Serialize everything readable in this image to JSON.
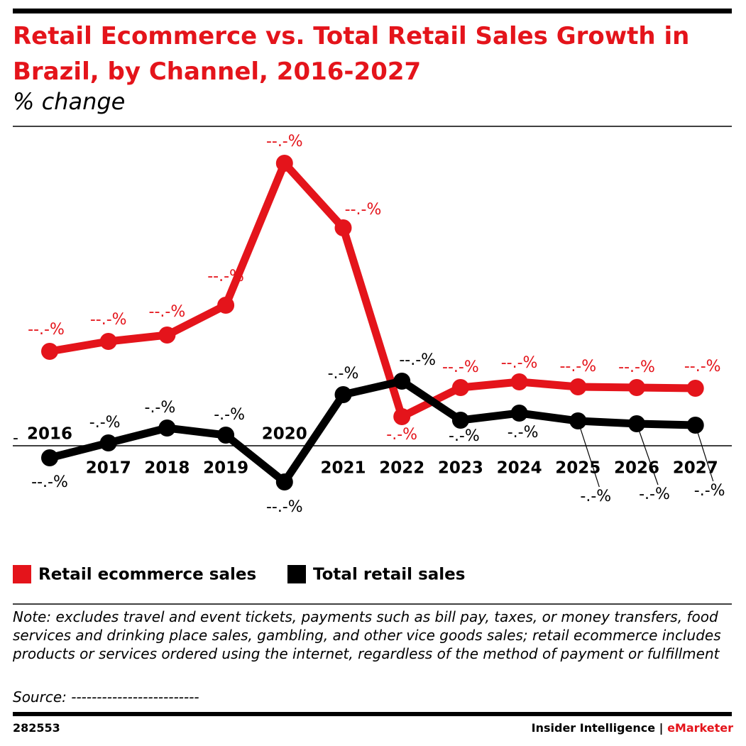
{
  "chart_data": {
    "type": "line",
    "title": "Retail Ecommerce vs. Total Retail Sales Growth in Brazil, by Channel, 2016-2027",
    "subtitle": "% change",
    "categories": [
      "2016",
      "2017",
      "2018",
      "2019",
      "2020",
      "2021",
      "2022",
      "2023",
      "2024",
      "2025",
      "2026",
      "2027"
    ],
    "series": [
      {
        "name": "Retail ecommerce sales",
        "color": "#e4141b",
        "values": [
          13.3,
          14.7,
          15.6,
          19.8,
          39.8,
          30.7,
          4.1,
          8.2,
          9.0,
          8.3,
          8.2,
          8.1
        ],
        "value_labels": [
          "--.-%",
          "--.-%",
          "--.-%",
          "--.-%",
          "--.-%",
          "--.-%",
          "-.-%",
          "--.-%",
          "--.-%",
          "--.-%",
          "--.-%",
          "--.-%"
        ]
      },
      {
        "name": "Total retail sales",
        "color": "#000000",
        "values": [
          -1.7,
          0.4,
          2.5,
          1.5,
          -5.1,
          7.2,
          9.1,
          3.6,
          4.6,
          3.5,
          3.1,
          2.9
        ],
        "value_labels": [
          "--.-%",
          "-.-%",
          "-.-%",
          "-.-%",
          "--.-%",
          "-.-%",
          "--.-%",
          "-.-%",
          "-.-%",
          "-.-%",
          "-.-%",
          "-.-%"
        ]
      }
    ],
    "ylim": [
      -12,
      43
    ],
    "yticks": [
      {
        "value": 0,
        "label": "-"
      }
    ],
    "note": "Note: excludes travel and event tickets, payments such as bill pay, taxes, or money transfers, food services and drinking place sales, gambling, and other vice goods sales; retail ecommerce includes products or services ordered using the internet, regardless of the method of payment or fulfillment",
    "source": "Source: -------------------------",
    "chart_id": "282553",
    "brand": "Insider Intelligence",
    "brand_accent": "eMarketer"
  }
}
